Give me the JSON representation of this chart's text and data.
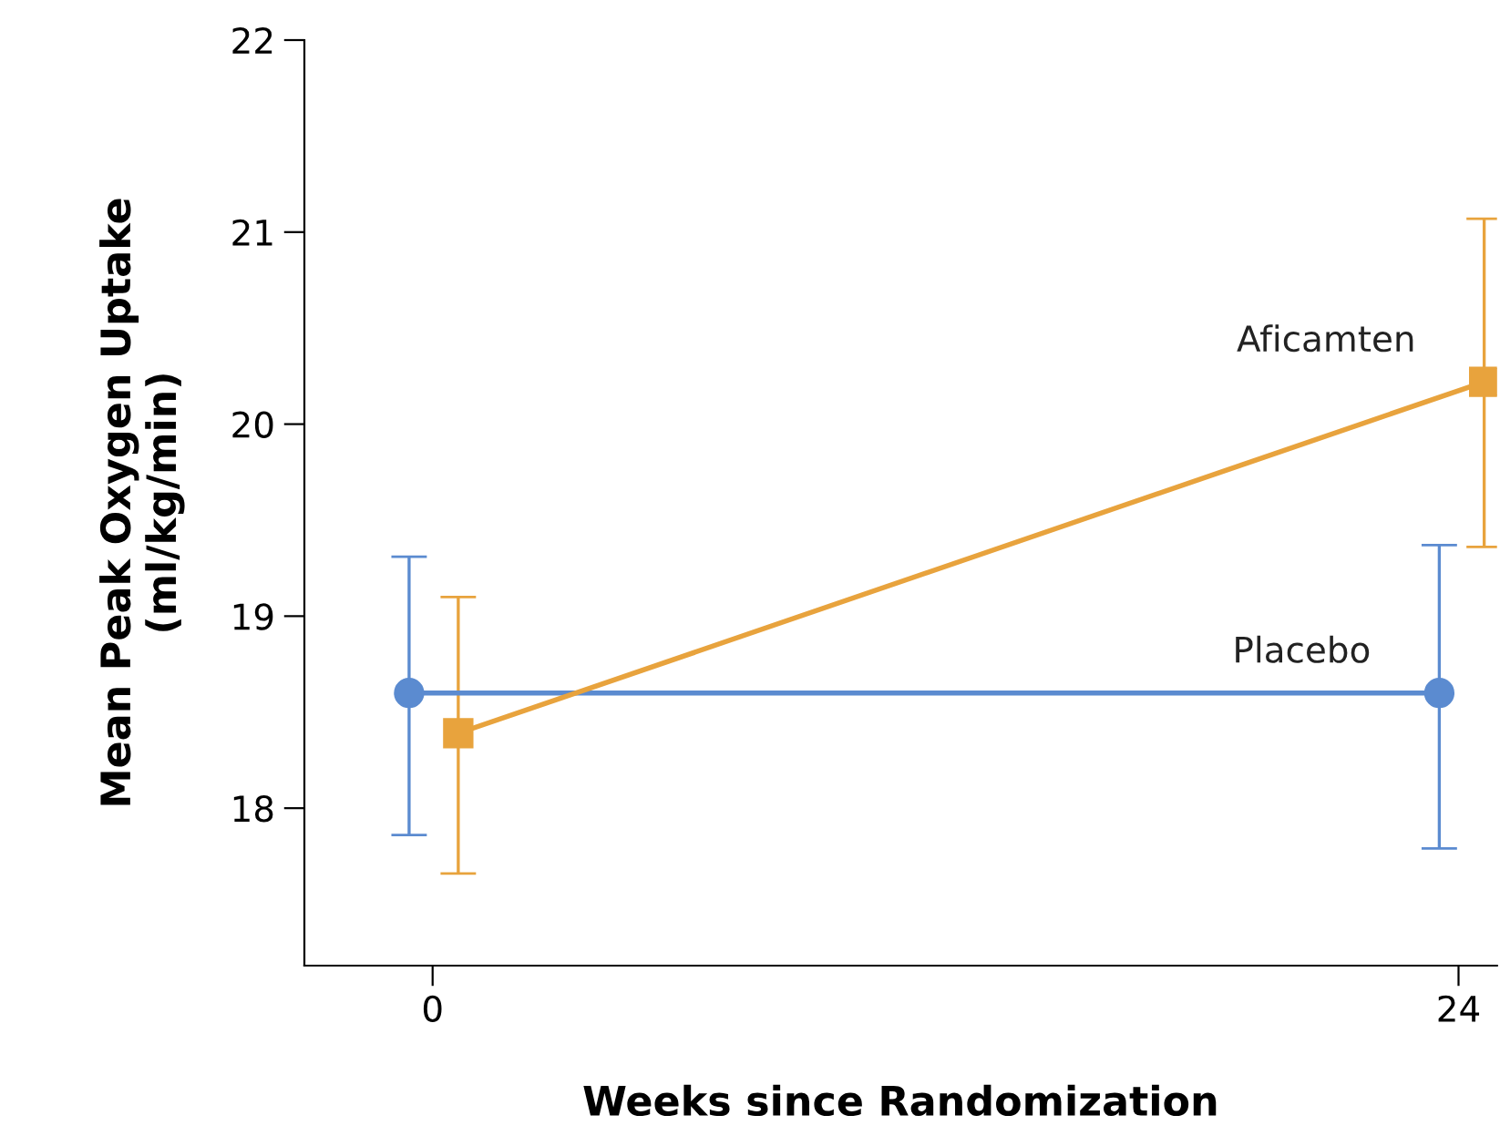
{
  "chart_data": {
    "type": "line",
    "xlabel": "Weeks since Randomization",
    "ylabel": "Mean Peak Oxygen Uptake\n(ml/kg/min)",
    "xlim": [
      -3,
      24.9
    ],
    "ylim": [
      17.18,
      22
    ],
    "xticks": [
      0,
      24
    ],
    "yticks": [
      18,
      19,
      20,
      21,
      22
    ],
    "grid": false,
    "legend": false,
    "series": [
      {
        "name": "Placebo",
        "color": "#5b8bd0",
        "marker": "circle",
        "x": [
          -0.55,
          23.55
        ],
        "values": [
          18.6,
          18.6
        ],
        "errors": [
          [
            17.86,
            19.31
          ],
          [
            17.79,
            19.37
          ]
        ]
      },
      {
        "name": "Aficamten",
        "color": "#e8a33d",
        "marker": "square",
        "x": [
          0.6,
          24.6
        ],
        "values": [
          18.39,
          20.22
        ],
        "errors": [
          [
            17.66,
            19.1
          ],
          [
            19.36,
            21.07
          ]
        ]
      }
    ]
  }
}
